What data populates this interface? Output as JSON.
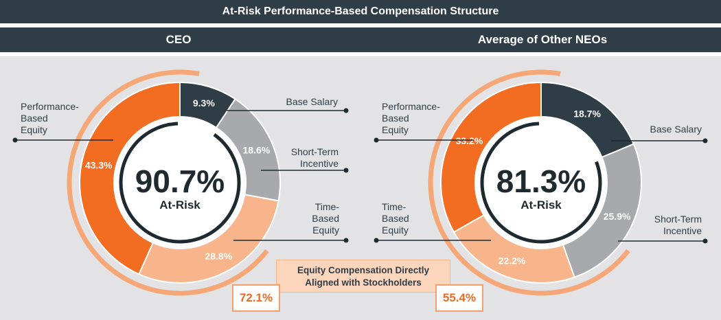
{
  "title": "At-Risk Performance-Based Compensation Structure",
  "colors": {
    "banner": "#2f3d47",
    "panel": "#e3e3e5",
    "base_salary": "#2f3d47",
    "short_term_incentive": "#a7a9ac",
    "time_based_equity": "#f8b48a",
    "performance_based_equity": "#f26c22",
    "accent_arc": "#f5a777"
  },
  "chart_data": [
    {
      "type": "pie",
      "title": "CEO",
      "center_value": "90.7%",
      "center_label": "At-Risk",
      "slices": [
        {
          "name": "Base Salary",
          "value": 9.3,
          "label": "9.3%"
        },
        {
          "name": "Short-Term Incentive",
          "value": 18.6,
          "label": "18.6%"
        },
        {
          "name": "Time-Based Equity",
          "value": 28.8,
          "label": "28.8%"
        },
        {
          "name": "Performance-Based Equity",
          "value": 43.3,
          "label": "43.3%"
        }
      ],
      "legend_labels": {
        "base_salary": [
          "Base Salary"
        ],
        "short_term_incentive": [
          "Short-Term",
          "Incentive"
        ],
        "time_based_equity": [
          "Time-",
          "Based",
          "Equity"
        ],
        "performance_based_equity": [
          "Performance-",
          "Based",
          "Equity"
        ]
      },
      "equity_aligned": "72.1%"
    },
    {
      "type": "pie",
      "title": "Average of Other NEOs",
      "center_value": "81.3%",
      "center_label": "At-Risk",
      "slices": [
        {
          "name": "Base Salary",
          "value": 18.7,
          "label": "18.7%"
        },
        {
          "name": "Short-Term Incentive",
          "value": 25.9,
          "label": "25.9%"
        },
        {
          "name": "Time-Based Equity",
          "value": 22.2,
          "label": "22.2%"
        },
        {
          "name": "Performance-Based Equity",
          "value": 33.2,
          "label": "33.2%"
        }
      ],
      "legend_labels": {
        "base_salary": [
          "Base Salary"
        ],
        "short_term_incentive": [
          "Short-Term",
          "Incentive"
        ],
        "time_based_equity": [
          "Time-",
          "Based",
          "Equity"
        ],
        "performance_based_equity": [
          "Performance-",
          "Based",
          "Equity"
        ]
      },
      "equity_aligned": "55.4%"
    }
  ],
  "callout": {
    "line1": "Equity Compensation Directly",
    "line2": "Aligned with Stockholders"
  }
}
